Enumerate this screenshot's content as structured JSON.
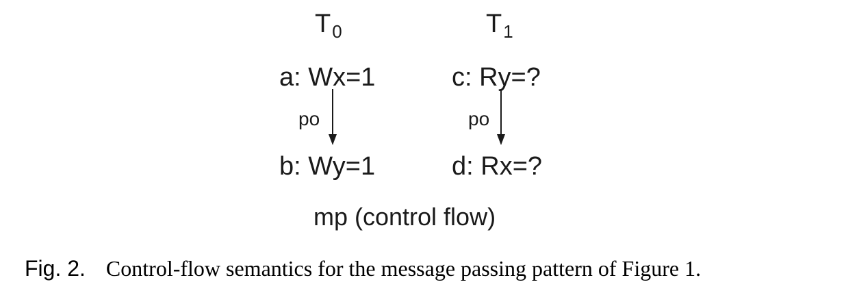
{
  "diagram": {
    "threads": [
      {
        "name": "T",
        "sub": "0"
      },
      {
        "name": "T",
        "sub": "1"
      }
    ],
    "events": {
      "a": "a: Wx=1",
      "b": "b: Wy=1",
      "c": "c: Ry=?",
      "d": "d: Rx=?"
    },
    "edges": {
      "left": "po",
      "right": "po"
    },
    "title": "mp (control flow)"
  },
  "caption": {
    "label": "Fig. 2.",
    "text": "Control-flow semantics for the message passing pattern of Figure 1."
  }
}
